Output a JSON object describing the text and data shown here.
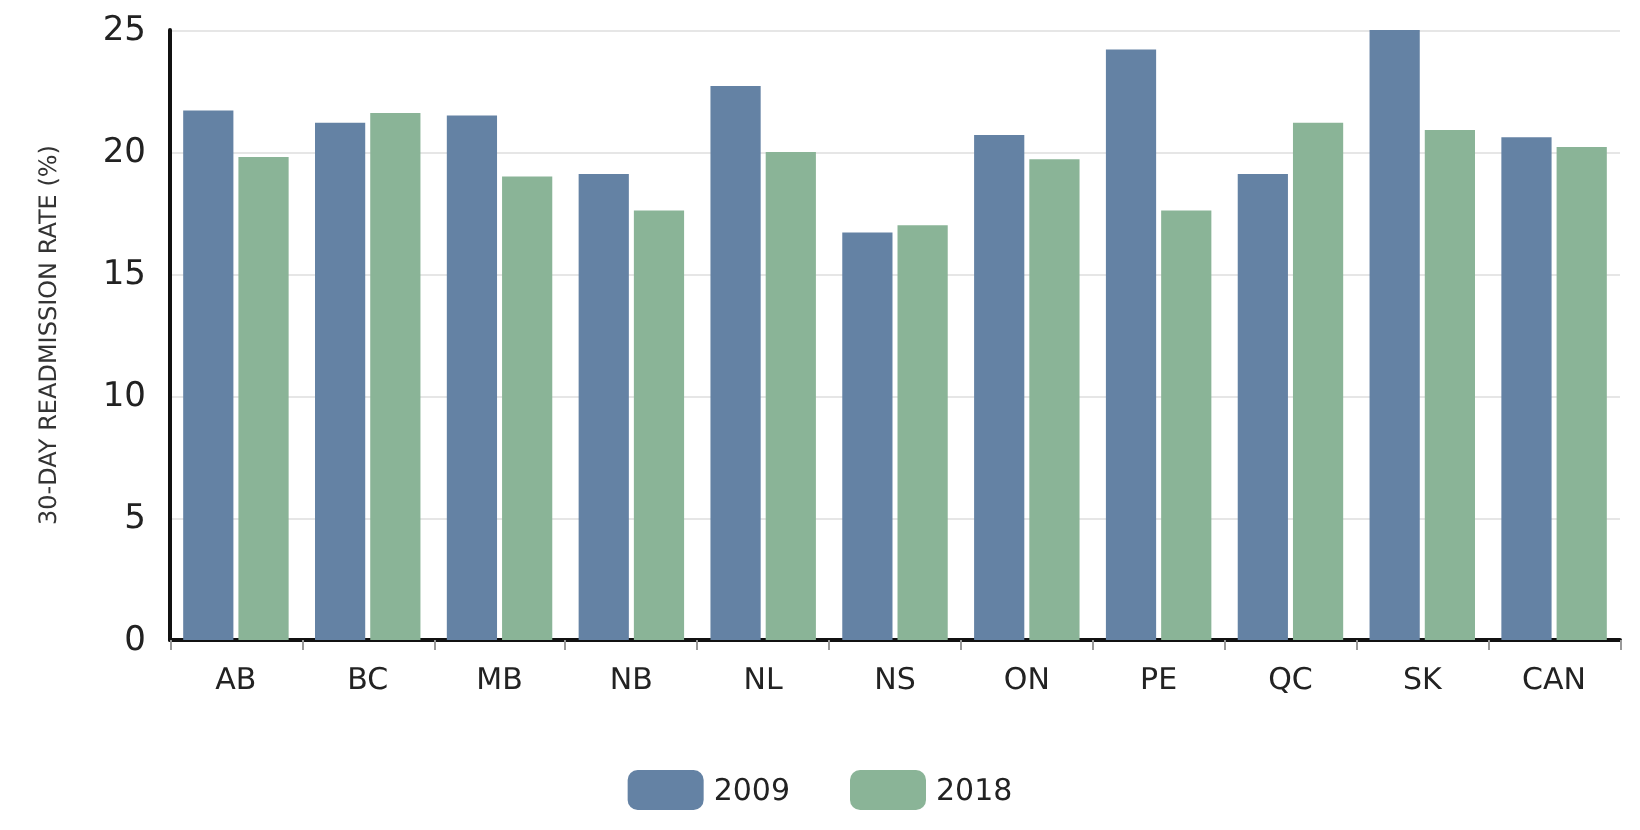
{
  "chart_data": {
    "type": "bar",
    "ylabel": "30-DAY READMISSION RATE (%)",
    "categories": [
      "AB",
      "BC",
      "MB",
      "NB",
      "NL",
      "NS",
      "ON",
      "PE",
      "QC",
      "SK",
      "CAN"
    ],
    "series": [
      {
        "name": "2009",
        "color": "#6482a4",
        "values": [
          21.7,
          21.2,
          21.5,
          19.1,
          22.7,
          16.7,
          20.7,
          24.2,
          19.1,
          25.0,
          20.6
        ]
      },
      {
        "name": "2018",
        "color": "#8ab497",
        "values": [
          19.8,
          21.6,
          19.0,
          17.6,
          20.0,
          17.0,
          19.7,
          17.6,
          21.2,
          20.9,
          20.2
        ]
      }
    ],
    "ylim": [
      0,
      25
    ],
    "yticks": [
      0,
      5,
      10,
      15,
      20,
      25
    ],
    "grid": "y",
    "legend": "bottom"
  }
}
